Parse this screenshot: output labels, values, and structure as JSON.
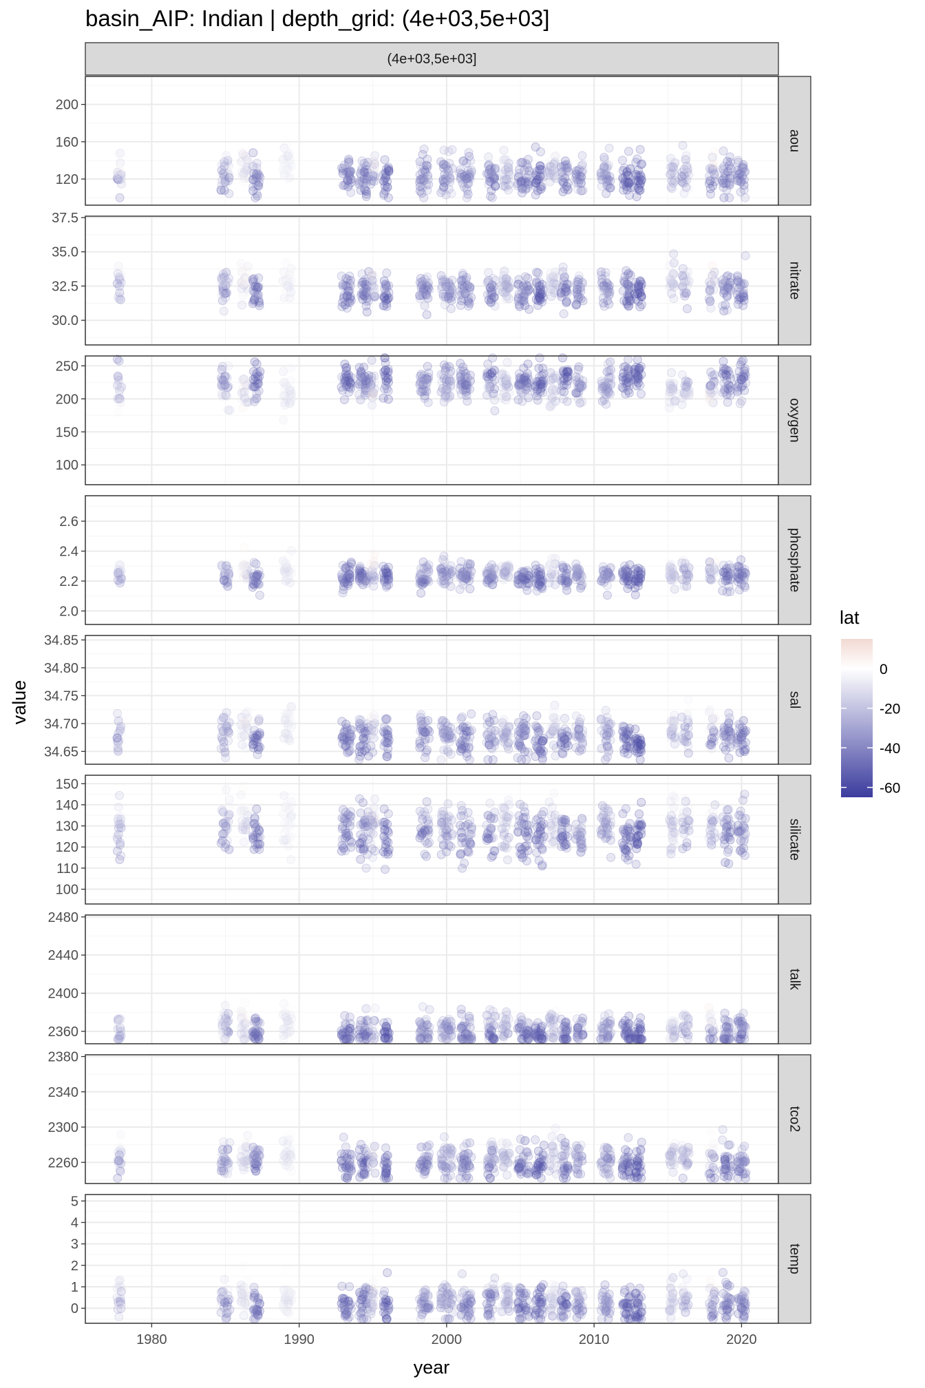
{
  "chart_data": {
    "type": "scatter",
    "title": "basin_AIP: Indian | depth_grid: (4e+03,5e+03]",
    "column_strip": "(4e+03,5e+03]",
    "xlabel": "year",
    "ylabel": "value",
    "xlim": [
      1975.5,
      2022.5
    ],
    "x_ticks": [
      1980,
      1990,
      2000,
      2010,
      2020
    ],
    "x_tick_labels": [
      "1980",
      "1990",
      "2000",
      "2010",
      "2020"
    ],
    "colors": {
      "low": "#3b3b9e",
      "mid": "#ffffff",
      "high": "#f2d9d2",
      "strip_fill": "#d9d9d9",
      "grid_major": "#ebebeb",
      "grid_minor": "#f5f5f5",
      "panel_border": "#333333"
    },
    "legend": {
      "title": "lat",
      "range": [
        -65,
        15
      ],
      "breaks": [
        0,
        -20,
        -40,
        -60
      ],
      "labels": [
        "0",
        "-20",
        "-40",
        "-60"
      ],
      "position": "right"
    },
    "x_clusters": [
      {
        "x": 1977.8,
        "w": 0.3,
        "lat": [
          -50,
          5
        ]
      },
      {
        "x": 1985.0,
        "w": 0.6,
        "lat": [
          -55,
          -5
        ]
      },
      {
        "x": 1986.3,
        "w": 0.5,
        "lat": [
          -25,
          8
        ]
      },
      {
        "x": 1987.1,
        "w": 0.5,
        "lat": [
          -62,
          -30
        ]
      },
      {
        "x": 1989.2,
        "w": 0.6,
        "lat": [
          -15,
          0
        ]
      },
      {
        "x": 1993.2,
        "w": 0.7,
        "lat": [
          -60,
          -35
        ]
      },
      {
        "x": 1994.4,
        "w": 0.7,
        "lat": [
          -60,
          -30
        ]
      },
      {
        "x": 1995.0,
        "w": 0.3,
        "lat": [
          -45,
          12
        ]
      },
      {
        "x": 1995.9,
        "w": 0.4,
        "lat": [
          -65,
          -40
        ]
      },
      {
        "x": 1998.5,
        "w": 0.7,
        "lat": [
          -55,
          -25
        ]
      },
      {
        "x": 2000.0,
        "w": 0.8,
        "lat": [
          -50,
          -20
        ]
      },
      {
        "x": 2001.3,
        "w": 0.8,
        "lat": [
          -55,
          -30
        ]
      },
      {
        "x": 2003.0,
        "w": 0.6,
        "lat": [
          -62,
          -20
        ]
      },
      {
        "x": 2004.0,
        "w": 0.5,
        "lat": [
          -40,
          -10
        ]
      },
      {
        "x": 2005.2,
        "w": 0.8,
        "lat": [
          -60,
          -30
        ]
      },
      {
        "x": 2006.3,
        "w": 0.6,
        "lat": [
          -62,
          -40
        ]
      },
      {
        "x": 2007.2,
        "w": 0.5,
        "lat": [
          -35,
          0
        ]
      },
      {
        "x": 2008.0,
        "w": 0.5,
        "lat": [
          -65,
          -30
        ]
      },
      {
        "x": 2009.0,
        "w": 0.5,
        "lat": [
          -55,
          -20
        ]
      },
      {
        "x": 2010.8,
        "w": 0.7,
        "lat": [
          -50,
          -25
        ]
      },
      {
        "x": 2012.2,
        "w": 0.6,
        "lat": [
          -62,
          -40
        ]
      },
      {
        "x": 2013.0,
        "w": 0.5,
        "lat": [
          -65,
          -45
        ]
      },
      {
        "x": 2015.3,
        "w": 0.4,
        "lat": [
          -35,
          -5
        ]
      },
      {
        "x": 2016.2,
        "w": 0.5,
        "lat": [
          -50,
          0
        ]
      },
      {
        "x": 2018.0,
        "w": 0.4,
        "lat": [
          -60,
          12
        ]
      },
      {
        "x": 2019.0,
        "w": 0.6,
        "lat": [
          -60,
          -30
        ]
      },
      {
        "x": 2020.0,
        "w": 0.6,
        "lat": [
          -60,
          -30
        ]
      }
    ],
    "facets": [
      {
        "name": "aou",
        "ylim": [
          92,
          230
        ],
        "y_ticks": [
          120,
          160,
          200
        ],
        "y_tick_labels": [
          "120",
          "160",
          "200"
        ],
        "center": 125,
        "spread": 14,
        "range": [
          100,
          205
        ]
      },
      {
        "name": "nitrate",
        "ylim": [
          28.2,
          37.6
        ],
        "y_ticks": [
          30.0,
          32.5,
          35.0,
          37.5
        ],
        "y_tick_labels": [
          "30.0",
          "32.5",
          "35.0",
          "37.5"
        ],
        "center": 32.3,
        "spread": 0.9,
        "range": [
          28.5,
          36.5
        ]
      },
      {
        "name": "oxygen",
        "ylim": [
          70,
          265
        ],
        "y_ticks": [
          100,
          150,
          200,
          250
        ],
        "y_tick_labels": [
          "100",
          "150",
          "200",
          "250"
        ],
        "center": 222,
        "spread": 20,
        "range": [
          140,
          262
        ]
      },
      {
        "name": "phosphate",
        "ylim": [
          1.91,
          2.77
        ],
        "y_ticks": [
          2.0,
          2.2,
          2.4,
          2.6
        ],
        "y_tick_labels": [
          "2.0",
          "2.2",
          "2.4",
          "2.6"
        ],
        "center": 2.24,
        "spread": 0.06,
        "range": [
          1.95,
          2.55
        ]
      },
      {
        "name": "sal",
        "ylim": [
          34.627,
          34.858
        ],
        "y_ticks": [
          34.65,
          34.7,
          34.75,
          34.8,
          34.85
        ],
        "y_tick_labels": [
          "34.65",
          "34.70",
          "34.75",
          "34.80",
          "34.85"
        ],
        "center": 34.68,
        "spread": 0.025,
        "range": [
          34.635,
          34.765
        ]
      },
      {
        "name": "silicate",
        "ylim": [
          93,
          154
        ],
        "y_ticks": [
          100,
          110,
          120,
          130,
          140,
          150
        ],
        "y_tick_labels": [
          "100",
          "110",
          "120",
          "130",
          "140",
          "150"
        ],
        "center": 128,
        "spread": 9,
        "range": [
          95,
          152
        ]
      },
      {
        "name": "talk",
        "ylim": [
          2347,
          2482
        ],
        "y_ticks": [
          2360,
          2400,
          2440,
          2480
        ],
        "y_tick_labels": [
          "2360",
          "2400",
          "2440",
          "2480"
        ],
        "center": 2362,
        "spread": 12,
        "range": [
          2352,
          2465
        ]
      },
      {
        "name": "tco2",
        "ylim": [
          2236,
          2382
        ],
        "y_ticks": [
          2260,
          2300,
          2340,
          2380
        ],
        "y_tick_labels": [
          "2260",
          "2300",
          "2340",
          "2380"
        ],
        "center": 2262,
        "spread": 14,
        "range": [
          2242,
          2350
        ]
      },
      {
        "name": "temp",
        "ylim": [
          -0.7,
          5.3
        ],
        "y_ticks": [
          0,
          1,
          2,
          3,
          4,
          5
        ],
        "y_tick_labels": [
          "0",
          "1",
          "2",
          "3",
          "4",
          "5"
        ],
        "center": 0.3,
        "spread": 0.6,
        "range": [
          -0.5,
          2.2
        ]
      }
    ]
  }
}
